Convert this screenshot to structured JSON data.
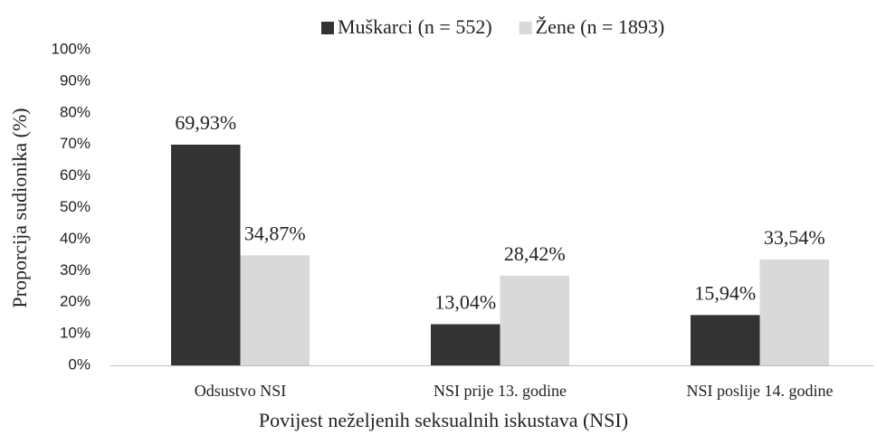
{
  "chart_data": {
    "type": "bar",
    "x_label": "Povijest neželjenih seksualnih iskustava (NSI)",
    "y_label": "Proporcija sudionika (%)",
    "categories": [
      "Odsustvo NSI",
      "NSI prije 13. godine",
      "NSI poslije 14. godine"
    ],
    "series": [
      {
        "name": "Muškarci (n = 552)",
        "color": "#333333",
        "values": [
          69.93,
          13.04,
          15.94
        ],
        "value_labels": [
          "69,93%",
          "13,04%",
          "15,94%"
        ]
      },
      {
        "name": "Žene (n = 1893)",
        "color": "#d9d9d9",
        "values": [
          34.87,
          28.42,
          33.54
        ],
        "value_labels": [
          "34,87%",
          "28,42%",
          "33,54%"
        ]
      }
    ],
    "ylim": [
      0,
      100
    ],
    "yticks": [
      {
        "value": 0,
        "label": "0%"
      },
      {
        "value": 10,
        "label": "10%"
      },
      {
        "value": 20,
        "label": "20%"
      },
      {
        "value": 30,
        "label": "30%"
      },
      {
        "value": 40,
        "label": "40%"
      },
      {
        "value": 50,
        "label": "50%"
      },
      {
        "value": 60,
        "label": "60%"
      },
      {
        "value": 70,
        "label": "70%"
      },
      {
        "value": 80,
        "label": "80%"
      },
      {
        "value": 90,
        "label": "90%"
      },
      {
        "value": 100,
        "label": "100%"
      }
    ],
    "grid": false,
    "legend": "top"
  }
}
